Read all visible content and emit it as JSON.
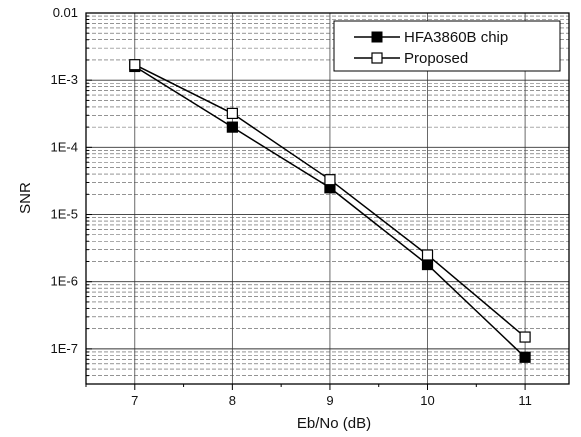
{
  "chart_data": {
    "type": "line",
    "title": "",
    "xlabel": "Eb/No (dB)",
    "ylabel": "SNR",
    "x": [
      7,
      8,
      9,
      10,
      11
    ],
    "xlim": [
      6.5,
      11.45
    ],
    "ylim": [
      3e-08,
      0.01
    ],
    "yscale": "log",
    "grid": true,
    "legend_position": "top-right",
    "x_tick_labels": [
      "7",
      "8",
      "9",
      "10",
      "11"
    ],
    "y_ticks": [
      0.01,
      0.001,
      0.0001,
      1e-05,
      1e-06,
      1e-07
    ],
    "y_tick_labels": [
      "0.01",
      "1E-3",
      "1E-4",
      "1E-5",
      "1E-6",
      "1E-7"
    ],
    "series": [
      {
        "name": "HFA3860B chip",
        "marker": "filled-square",
        "color": "#000000",
        "values": [
          0.0016,
          0.0002,
          2.5e-05,
          1.8e-06,
          7.5e-08
        ]
      },
      {
        "name": "Proposed",
        "marker": "open-square",
        "color": "#000000",
        "values": [
          0.0017,
          0.00032,
          3.3e-05,
          2.5e-06,
          1.5e-07
        ]
      }
    ]
  }
}
